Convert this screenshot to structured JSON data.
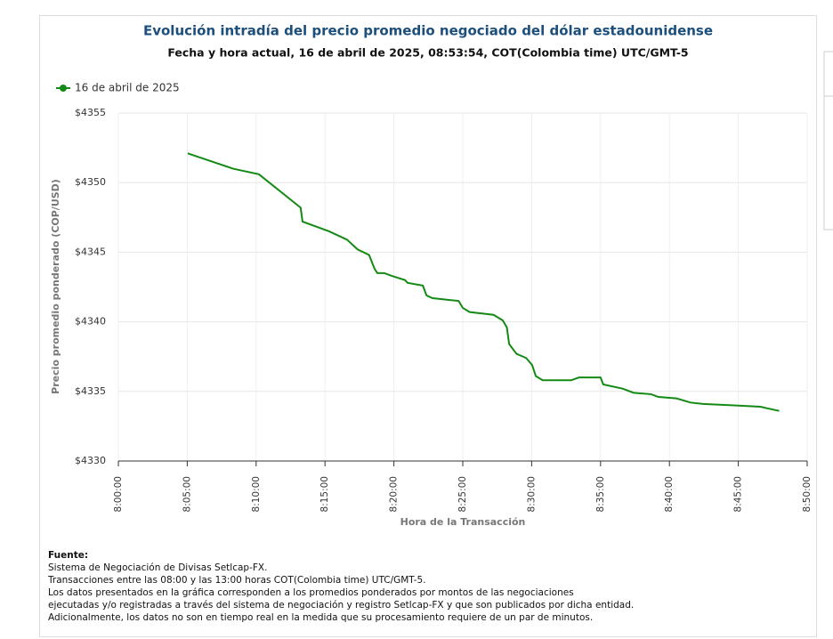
{
  "chart_data": {
    "type": "line",
    "title": "Evolución intradía del precio promedio negociado del dólar estadounidense",
    "subtitle": "Fecha y hora actual, 16 de abril de 2025, 08:53:54, COT(Colombia time) UTC/GMT-5",
    "x_label": "Hora de la Transacción",
    "y_label": "Precio promedio ponderado (COP/USD)",
    "x": [
      "8:05:02",
      "8:08:20",
      "8:10:12",
      "8:13:14",
      "8:13:22",
      "8:15:18",
      "8:16:36",
      "8:17:22",
      "8:18:12",
      "8:18:36",
      "8:18:48",
      "8:19:18",
      "8:19:50",
      "8:20:48",
      "8:21:00",
      "8:22:06",
      "8:22:22",
      "8:22:48",
      "8:24:42",
      "8:25:00",
      "8:25:30",
      "8:27:14",
      "8:27:54",
      "8:28:12",
      "8:28:22",
      "8:28:54",
      "8:29:36",
      "8:30:02",
      "8:30:18",
      "8:30:48",
      "8:32:52",
      "8:33:26",
      "8:35:00",
      "8:35:12",
      "8:36:36",
      "8:37:24",
      "8:38:40",
      "8:39:12",
      "8:40:30",
      "8:41:32",
      "8:42:26",
      "8:44:42",
      "8:46:36",
      "8:47:02",
      "8:47:58"
    ],
    "series": [
      {
        "name": "16 de abril de 2025",
        "color": "#138a13",
        "values": [
          4352.1,
          4351.0,
          4350.6,
          4348.2,
          4347.2,
          4346.5,
          4345.9,
          4345.2,
          4344.8,
          4343.8,
          4343.5,
          4343.5,
          4343.3,
          4343.0,
          4342.8,
          4342.6,
          4341.9,
          4341.7,
          4341.5,
          4341.0,
          4340.7,
          4340.5,
          4340.1,
          4339.6,
          4338.4,
          4337.7,
          4337.4,
          4336.9,
          4336.1,
          4335.8,
          4335.8,
          4336.0,
          4336.0,
          4335.5,
          4335.2,
          4334.9,
          4334.8,
          4334.6,
          4334.5,
          4334.2,
          4334.1,
          4334.0,
          4333.9,
          4333.8,
          4333.6
        ]
      }
    ],
    "xlim": [
      "8:00:00",
      "8:50:00"
    ],
    "xticks": [
      "8:00:00",
      "8:05:00",
      "8:10:00",
      "8:15:00",
      "8:20:00",
      "8:25:00",
      "8:30:00",
      "8:35:00",
      "8:40:00",
      "8:45:00",
      "8:50:00"
    ],
    "ylim": [
      4330,
      4355
    ],
    "yticks": [
      {
        "value": 4330,
        "label": "$4330"
      },
      {
        "value": 4335,
        "label": "$4335"
      },
      {
        "value": 4340,
        "label": "$4340"
      },
      {
        "value": 4345,
        "label": "$4345"
      },
      {
        "value": 4350,
        "label": "$4350"
      },
      {
        "value": 4355,
        "label": "$4355"
      }
    ],
    "grid": true,
    "legend_position": "top-left"
  },
  "source": {
    "title": "Fuente:",
    "lines": [
      "Sistema de Negociación de Divisas Setlcap-FX.",
      "Transacciones entre las 08:00 y las 13:00 horas COT(Colombia time) UTC/GMT-5.",
      "Los datos presentados en la gráfica corresponden a los promedios ponderados por montos de las negociaciones",
      "ejecutadas y/o registradas a través del sistema de negociación y registro Setlcap-FX y que son publicados por dicha entidad.",
      "Adicionalmente, los datos no son en tiempo real en la medida que su procesamiento requiere de un par de minutos."
    ]
  }
}
